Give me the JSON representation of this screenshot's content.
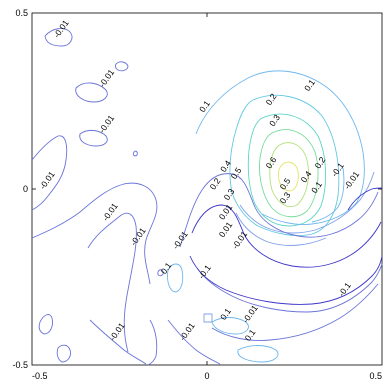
{
  "chart_data": {
    "type": "contour",
    "title": "",
    "xlabel": "",
    "ylabel": "",
    "xlim": [
      -0.5,
      0.5
    ],
    "ylim": [
      -0.5,
      0.5
    ],
    "x_ticks": [
      "-0.5",
      "0",
      "0.5"
    ],
    "y_ticks": [
      "0.5",
      "0",
      "-0.5"
    ],
    "levels": [
      -0.1,
      -0.01,
      0.01,
      0.1,
      0.2,
      0.3,
      0.4,
      0.5,
      0.6
    ],
    "level_colors": {
      "-0.1": "#3d35c8",
      "-0.01": "#6a74d8",
      "0.01": "#7fa0e8",
      "0.1": "#6fb7ee",
      "0.2": "#63c9e2",
      "0.3": "#5bd5c4",
      "0.4": "#77dc9a",
      "0.5": "#b4e07a",
      "0.6": "#e6e36a"
    },
    "contour_labels": [
      {
        "text": "-0.01",
        "x": -0.41,
        "y": 0.45
      },
      {
        "text": "-0.01",
        "x": -0.28,
        "y": 0.31
      },
      {
        "text": "-0.01",
        "x": -0.28,
        "y": 0.18
      },
      {
        "text": "-0.01",
        "x": -0.45,
        "y": 0.02
      },
      {
        "text": "-0.01",
        "x": -0.27,
        "y": -0.07
      },
      {
        "text": "-0.01",
        "x": -0.19,
        "y": -0.14
      },
      {
        "text": "-0.01",
        "x": -0.07,
        "y": -0.15
      },
      {
        "text": "-0.01",
        "x": -0.25,
        "y": -0.41
      },
      {
        "text": "-0.01",
        "x": -0.05,
        "y": -0.41
      },
      {
        "text": "-0.01",
        "x": 0.13,
        "y": -0.36
      },
      {
        "text": "-0.01",
        "x": 0.42,
        "y": 0.02
      },
      {
        "text": "-0.01",
        "x": 0.1,
        "y": -0.15
      },
      {
        "text": "-0.1",
        "x": 0.0,
        "y": -0.24
      },
      {
        "text": "-0.1",
        "x": 0.4,
        "y": -0.29
      },
      {
        "text": "-0.1",
        "x": 0.38,
        "y": 0.05
      },
      {
        "text": "0.1",
        "x": 0.0,
        "y": 0.23
      },
      {
        "text": "0.1",
        "x": 0.3,
        "y": 0.29
      },
      {
        "text": "0.1",
        "x": -0.11,
        "y": -0.23
      },
      {
        "text": "0.1",
        "x": 0.06,
        "y": -0.36
      },
      {
        "text": "0.1",
        "x": 0.13,
        "y": -0.42
      },
      {
        "text": "0.1",
        "x": 0.32,
        "y": 0.0
      },
      {
        "text": "0.2",
        "x": 0.19,
        "y": 0.25
      },
      {
        "text": "0.2",
        "x": 0.03,
        "y": 0.01
      },
      {
        "text": "0.2",
        "x": 0.33,
        "y": 0.07
      },
      {
        "text": "0.3",
        "x": 0.2,
        "y": 0.19
      },
      {
        "text": "0.3",
        "x": 0.07,
        "y": -0.02
      },
      {
        "text": "0.3",
        "x": 0.23,
        "y": -0.03
      },
      {
        "text": "0.4",
        "x": 0.06,
        "y": 0.06
      },
      {
        "text": "0.4",
        "x": 0.29,
        "y": 0.03
      },
      {
        "text": "0.5",
        "x": 0.09,
        "y": 0.04
      },
      {
        "text": "0.5",
        "x": 0.23,
        "y": 0.01
      },
      {
        "text": "0.6",
        "x": 0.19,
        "y": 0.07
      },
      {
        "text": "0.01",
        "x": 0.06,
        "y": -0.07
      },
      {
        "text": "0.01",
        "x": 0.06,
        "y": -0.12
      }
    ]
  }
}
